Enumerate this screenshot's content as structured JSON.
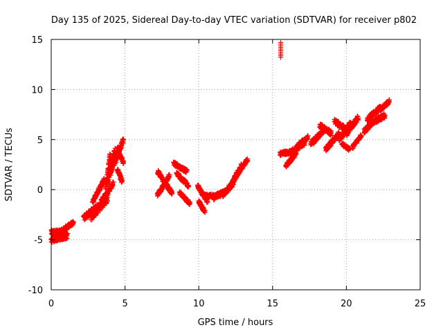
{
  "chart_data": {
    "type": "scatter",
    "title": "Day 135 of 2025, Sidereal Day-to-day VTEC variation (SDTVAR) for receiver p802",
    "xlabel": "GPS time / hours",
    "ylabel": "SDTVAR / TECUs",
    "xlim": [
      0,
      25
    ],
    "ylim": [
      -10,
      15
    ],
    "xticks": [
      0,
      5,
      10,
      15,
      20,
      25
    ],
    "yticks": [
      -10,
      -5,
      0,
      5,
      10,
      15
    ],
    "grid": true,
    "marker": "plus",
    "color": "#ff0000",
    "segments": [
      {
        "x": [
          0.0,
          0.8
        ],
        "y": [
          -4.3,
          -4.3
        ],
        "jitter": 0.6
      },
      {
        "x": [
          0.0,
          1.1
        ],
        "y": [
          -5.0,
          -4.6
        ],
        "jitter": 0.6
      },
      {
        "x": [
          0.6,
          1.5
        ],
        "y": [
          -4.2,
          -3.3
        ],
        "jitter": 0.4
      },
      {
        "x": [
          2.2,
          3.2
        ],
        "y": [
          -2.8,
          -1.6
        ],
        "jitter": 0.6
      },
      {
        "x": [
          2.7,
          3.8
        ],
        "y": [
          -2.8,
          -1.0
        ],
        "jitter": 0.6
      },
      {
        "x": [
          2.8,
          3.6
        ],
        "y": [
          -1.2,
          1.0
        ],
        "jitter": 0.4
      },
      {
        "x": [
          3.3,
          4.2
        ],
        "y": [
          -1.4,
          0.6
        ],
        "jitter": 0.5
      },
      {
        "x": [
          3.7,
          4.0
        ],
        "y": [
          0.2,
          3.6
        ],
        "jitter": 0.4
      },
      {
        "x": [
          3.8,
          4.3
        ],
        "y": [
          0.6,
          4.0
        ],
        "jitter": 0.4
      },
      {
        "x": [
          4.0,
          4.4
        ],
        "y": [
          1.6,
          3.6
        ],
        "jitter": 0.4
      },
      {
        "x": [
          4.3,
          4.9
        ],
        "y": [
          2.6,
          5.0
        ],
        "jitter": 0.5
      },
      {
        "x": [
          4.5,
          4.9
        ],
        "y": [
          4.2,
          2.6
        ],
        "jitter": 0.4
      },
      {
        "x": [
          4.5,
          4.8
        ],
        "y": [
          2.0,
          0.8
        ],
        "jitter": 0.3
      },
      {
        "x": [
          7.2,
          8.2
        ],
        "y": [
          1.8,
          -0.4
        ],
        "jitter": 0.4
      },
      {
        "x": [
          7.2,
          8.0
        ],
        "y": [
          -0.6,
          1.4
        ],
        "jitter": 0.4
      },
      {
        "x": [
          8.3,
          9.2
        ],
        "y": [
          2.6,
          1.8
        ],
        "jitter": 0.4
      },
      {
        "x": [
          8.5,
          9.3
        ],
        "y": [
          1.6,
          0.4
        ],
        "jitter": 0.4
      },
      {
        "x": [
          8.7,
          9.4
        ],
        "y": [
          -0.3,
          -1.4
        ],
        "jitter": 0.3
      },
      {
        "x": [
          9.9,
          10.6
        ],
        "y": [
          0.4,
          -1.2
        ],
        "jitter": 0.4
      },
      {
        "x": [
          10.0,
          10.4
        ],
        "y": [
          -1.2,
          -2.2
        ],
        "jitter": 0.3
      },
      {
        "x": [
          10.4,
          11.3
        ],
        "y": [
          -0.6,
          -0.6
        ],
        "jitter": 0.3
      },
      {
        "x": [
          11.0,
          11.8
        ],
        "y": [
          -0.8,
          -0.2
        ],
        "jitter": 0.5
      },
      {
        "x": [
          11.6,
          12.4
        ],
        "y": [
          -0.6,
          0.8
        ],
        "jitter": 0.5
      },
      {
        "x": [
          12.1,
          12.9
        ],
        "y": [
          0.2,
          2.4
        ],
        "jitter": 0.5
      },
      {
        "x": [
          12.4,
          13.3
        ],
        "y": [
          1.2,
          3.0
        ],
        "jitter": 0.4
      },
      {
        "x": [
          15.55,
          15.55
        ],
        "y": [
          13.2,
          14.7
        ],
        "jitter": 0.0
      },
      {
        "x": [
          15.5,
          16.5
        ],
        "y": [
          3.6,
          3.8
        ],
        "jitter": 0.4
      },
      {
        "x": [
          15.9,
          16.6
        ],
        "y": [
          2.4,
          3.6
        ],
        "jitter": 0.4
      },
      {
        "x": [
          16.2,
          17.2
        ],
        "y": [
          3.6,
          4.8
        ],
        "jitter": 0.6
      },
      {
        "x": [
          16.7,
          17.4
        ],
        "y": [
          4.4,
          5.2
        ],
        "jitter": 0.4
      },
      {
        "x": [
          17.6,
          18.4
        ],
        "y": [
          4.6,
          5.8
        ],
        "jitter": 0.5
      },
      {
        "x": [
          18.2,
          19.0
        ],
        "y": [
          6.4,
          5.6
        ],
        "jitter": 0.5
      },
      {
        "x": [
          18.6,
          19.5
        ],
        "y": [
          4.0,
          5.6
        ],
        "jitter": 0.5
      },
      {
        "x": [
          19.2,
          19.8
        ],
        "y": [
          6.8,
          6.2
        ],
        "jitter": 0.5
      },
      {
        "x": [
          19.5,
          20.3
        ],
        "y": [
          5.0,
          6.6
        ],
        "jitter": 0.5
      },
      {
        "x": [
          19.7,
          20.2
        ],
        "y": [
          4.6,
          4.0
        ],
        "jitter": 0.3
      },
      {
        "x": [
          20.0,
          20.8
        ],
        "y": [
          5.6,
          7.2
        ],
        "jitter": 0.5
      },
      {
        "x": [
          20.4,
          21.0
        ],
        "y": [
          4.2,
          5.4
        ],
        "jitter": 0.3
      },
      {
        "x": [
          21.2,
          21.8
        ],
        "y": [
          5.8,
          6.8
        ],
        "jitter": 0.5
      },
      {
        "x": [
          21.4,
          22.3
        ],
        "y": [
          7.0,
          8.2
        ],
        "jitter": 0.5
      },
      {
        "x": [
          21.6,
          22.6
        ],
        "y": [
          6.6,
          7.4
        ],
        "jitter": 0.5
      },
      {
        "x": [
          22.3,
          22.9
        ],
        "y": [
          8.0,
          8.8
        ],
        "jitter": 0.4
      }
    ]
  }
}
